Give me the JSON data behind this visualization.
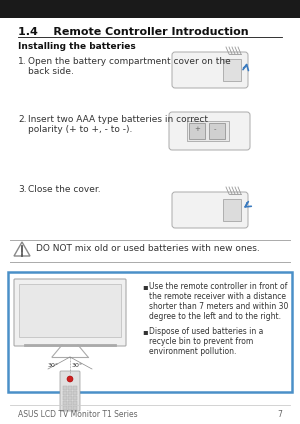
{
  "title": "1.4    Remote Controller Introduction",
  "subtitle": "Installing the batteries",
  "step1_num": "1.",
  "step1": "Open the battery compartment cover on the\nback side.",
  "step2_num": "2.",
  "step2": "Insert two AAA type batteries in correct\npolarity (+ to +, - to -).",
  "step3_num": "3.",
  "step3": "Close the cover.",
  "warning_text": "DO NOT mix old or used batteries with new ones.",
  "bullet1_line1": "Use the remote controller in front of",
  "bullet1_line2": "the remote receiver with a distance",
  "bullet1_line3": "shorter than 7 meters and within 30",
  "bullet1_line4": "degree to the left and to the right.",
  "bullet2_line1": "Dispose of used batteries in a",
  "bullet2_line2": "recycle bin to prevent from",
  "bullet2_line3": "environment pollution.",
  "footer": "ASUS LCD TV Monitor T1 Series",
  "page_num": "7",
  "bg_color": "#ffffff",
  "text_color": "#333333",
  "border_color": "#4a90c8",
  "title_color": "#111111",
  "warn_line_color": "#aaaaaa",
  "footer_color": "#666666",
  "gray_img": "#c8c8c8"
}
